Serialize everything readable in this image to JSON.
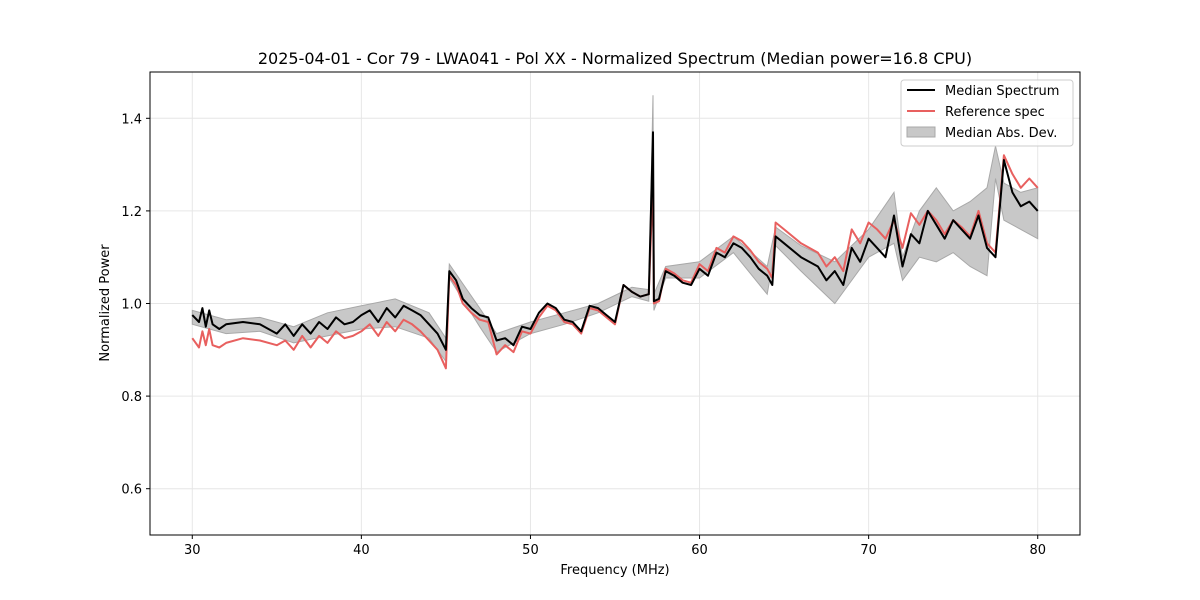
{
  "chart_data": {
    "type": "line",
    "title": "2025-04-01 - Cor 79 - LWA041 - Pol XX - Normalized Spectrum (Median power=16.8 CPU)",
    "xlabel": "Frequency (MHz)",
    "ylabel": "Normalized Power",
    "xlim": [
      27.5,
      82.5
    ],
    "ylim": [
      0.5,
      1.5
    ],
    "xticks": [
      30,
      40,
      50,
      60,
      70,
      80
    ],
    "yticks": [
      0.6,
      0.8,
      1.0,
      1.2,
      1.4
    ],
    "xtick_labels": [
      "30",
      "40",
      "50",
      "60",
      "70",
      "80"
    ],
    "ytick_labels": [
      "0.6",
      "0.8",
      "1.0",
      "1.2",
      "1.4"
    ],
    "grid": true,
    "legend_position": "top-right",
    "legend": {
      "median": "Median Spectrum",
      "reference": "Reference spec",
      "mad": "Median Abs. Dev."
    },
    "colors": {
      "median": "#000000",
      "reference": "#e8605f",
      "mad_fill": "#c8c8c8",
      "mad_edge": "#a8a8a8"
    },
    "series": [
      {
        "name": "Median Spectrum",
        "x": [
          30.0,
          30.4,
          30.6,
          30.8,
          31.0,
          31.2,
          31.6,
          32.0,
          33.0,
          34.0,
          35.0,
          35.5,
          36.0,
          36.5,
          37.0,
          37.5,
          38.0,
          38.5,
          39.0,
          39.5,
          40.0,
          40.5,
          41.0,
          41.5,
          42.0,
          42.5,
          43.0,
          43.5,
          44.0,
          44.5,
          45.0,
          45.2,
          45.6,
          46.0,
          46.5,
          47.0,
          47.5,
          48.0,
          48.5,
          49.0,
          49.5,
          50.0,
          50.5,
          51.0,
          51.5,
          52.0,
          52.5,
          53.0,
          53.5,
          54.0,
          54.5,
          55.0,
          55.5,
          56.0,
          56.5,
          57.0,
          57.25,
          57.3,
          57.6,
          58.0,
          58.5,
          59.0,
          59.5,
          60.0,
          60.5,
          61.0,
          61.5,
          62.0,
          62.5,
          63.0,
          63.5,
          64.0,
          64.3,
          64.5,
          65.0,
          66.0,
          67.0,
          67.5,
          68.0,
          68.5,
          69.0,
          69.5,
          70.0,
          70.5,
          71.0,
          71.5,
          72.0,
          72.5,
          73.0,
          73.5,
          74.0,
          74.5,
          75.0,
          75.5,
          76.0,
          76.5,
          77.0,
          77.5,
          78.0,
          78.5,
          79.0,
          79.5,
          80.0
        ],
        "values": [
          0.975,
          0.96,
          0.99,
          0.95,
          0.985,
          0.955,
          0.945,
          0.955,
          0.96,
          0.955,
          0.935,
          0.955,
          0.93,
          0.955,
          0.935,
          0.96,
          0.945,
          0.97,
          0.955,
          0.96,
          0.975,
          0.985,
          0.96,
          0.99,
          0.97,
          0.995,
          0.985,
          0.975,
          0.955,
          0.935,
          0.9,
          1.07,
          1.05,
          1.01,
          0.99,
          0.975,
          0.97,
          0.92,
          0.925,
          0.91,
          0.95,
          0.945,
          0.98,
          1.0,
          0.99,
          0.965,
          0.96,
          0.94,
          0.995,
          0.99,
          0.975,
          0.96,
          1.04,
          1.025,
          1.015,
          1.02,
          1.37,
          1.005,
          1.01,
          1.07,
          1.06,
          1.045,
          1.04,
          1.075,
          1.06,
          1.11,
          1.1,
          1.13,
          1.12,
          1.1,
          1.075,
          1.06,
          1.04,
          1.145,
          1.13,
          1.1,
          1.08,
          1.05,
          1.07,
          1.04,
          1.12,
          1.09,
          1.14,
          1.12,
          1.1,
          1.19,
          1.08,
          1.15,
          1.13,
          1.2,
          1.17,
          1.14,
          1.18,
          1.16,
          1.14,
          1.19,
          1.12,
          1.1,
          1.31,
          1.24,
          1.21,
          1.22,
          1.2
        ],
        "color": "#000000"
      },
      {
        "name": "Reference spec",
        "x": [
          30.0,
          30.4,
          30.6,
          30.8,
          31.0,
          31.2,
          31.6,
          32.0,
          33.0,
          34.0,
          35.0,
          35.5,
          36.0,
          36.5,
          37.0,
          37.5,
          38.0,
          38.5,
          39.0,
          39.5,
          40.0,
          40.5,
          41.0,
          41.5,
          42.0,
          42.5,
          43.0,
          43.5,
          44.0,
          44.5,
          45.0,
          45.2,
          45.6,
          46.0,
          46.5,
          47.0,
          47.5,
          48.0,
          48.5,
          49.0,
          49.5,
          50.0,
          50.5,
          51.0,
          51.5,
          52.0,
          52.5,
          53.0,
          53.5,
          54.0,
          54.5,
          55.0,
          55.5,
          56.0,
          56.5,
          57.0,
          57.25,
          57.3,
          57.6,
          58.0,
          58.5,
          59.0,
          59.5,
          60.0,
          60.5,
          61.0,
          61.5,
          62.0,
          62.5,
          63.0,
          63.5,
          64.0,
          64.3,
          64.5,
          65.0,
          66.0,
          67.0,
          67.5,
          68.0,
          68.5,
          69.0,
          69.5,
          70.0,
          70.5,
          71.0,
          71.5,
          72.0,
          72.5,
          73.0,
          73.5,
          74.0,
          74.5,
          75.0,
          75.5,
          76.0,
          76.5,
          77.0,
          77.5,
          78.0,
          78.5,
          79.0,
          79.5,
          80.0
        ],
        "values": [
          0.925,
          0.905,
          0.94,
          0.91,
          0.945,
          0.91,
          0.905,
          0.915,
          0.925,
          0.92,
          0.91,
          0.92,
          0.9,
          0.93,
          0.905,
          0.93,
          0.915,
          0.94,
          0.925,
          0.93,
          0.94,
          0.955,
          0.93,
          0.96,
          0.94,
          0.965,
          0.955,
          0.94,
          0.92,
          0.9,
          0.86,
          1.06,
          1.04,
          1.0,
          0.98,
          0.965,
          0.96,
          0.89,
          0.91,
          0.895,
          0.94,
          0.935,
          0.97,
          0.995,
          0.985,
          0.96,
          0.955,
          0.935,
          0.99,
          0.985,
          0.97,
          0.955,
          1.04,
          1.025,
          1.015,
          1.02,
          1.27,
          1.0,
          1.005,
          1.075,
          1.065,
          1.05,
          1.045,
          1.085,
          1.07,
          1.12,
          1.11,
          1.145,
          1.135,
          1.115,
          1.09,
          1.075,
          1.055,
          1.175,
          1.16,
          1.13,
          1.11,
          1.08,
          1.1,
          1.07,
          1.16,
          1.13,
          1.175,
          1.16,
          1.14,
          1.18,
          1.12,
          1.195,
          1.17,
          1.2,
          1.18,
          1.15,
          1.18,
          1.165,
          1.145,
          1.2,
          1.13,
          1.11,
          1.32,
          1.28,
          1.25,
          1.27,
          1.25
        ],
        "color": "#e8605f"
      }
    ],
    "mad_band": {
      "name": "Median Abs. Dev.",
      "x": [
        30.0,
        32.0,
        34.0,
        36.0,
        38.0,
        40.0,
        42.0,
        44.0,
        45.0,
        45.2,
        47.0,
        48.0,
        50.0,
        52.0,
        54.0,
        56.0,
        57.0,
        57.25,
        57.3,
        58.0,
        60.0,
        62.0,
        64.0,
        64.5,
        66.0,
        68.0,
        70.0,
        71.5,
        72.0,
        73.0,
        74.0,
        75.0,
        76.0,
        77.0,
        77.5,
        78.0,
        79.0,
        80.0
      ],
      "upper": [
        0.985,
        0.965,
        0.97,
        0.95,
        0.98,
        0.995,
        1.01,
        0.98,
        0.925,
        1.085,
        0.99,
        0.935,
        0.96,
        0.98,
        1.0,
        1.035,
        1.03,
        1.45,
        1.02,
        1.08,
        1.09,
        1.145,
        1.08,
        1.165,
        1.125,
        1.09,
        1.16,
        1.24,
        1.1,
        1.2,
        1.25,
        1.2,
        1.22,
        1.25,
        1.34,
        1.26,
        1.24,
        1.25
      ],
      "lower": [
        0.955,
        0.935,
        0.94,
        0.915,
        0.93,
        0.945,
        0.95,
        0.925,
        0.875,
        1.055,
        0.95,
        0.895,
        0.935,
        0.955,
        0.98,
        1.015,
        1.005,
        1.29,
        0.985,
        1.055,
        1.055,
        1.11,
        1.02,
        1.125,
        1.07,
        1.0,
        1.1,
        1.13,
        1.05,
        1.1,
        1.09,
        1.11,
        1.08,
        1.06,
        1.27,
        1.18,
        1.16,
        1.14
      ]
    }
  }
}
